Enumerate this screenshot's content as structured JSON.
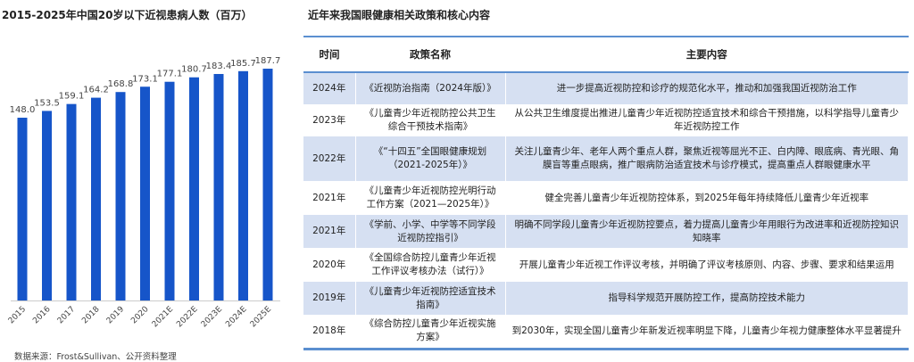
{
  "chart_data": {
    "type": "bar",
    "title": "2015-2025年中国20岁以下近视患病人数（百万）",
    "categories": [
      "2015",
      "2016",
      "2017",
      "2018",
      "2019",
      "2020",
      "2021E",
      "2022E",
      "2023E",
      "2024E",
      "2025E"
    ],
    "values": [
      148.0,
      153.5,
      159.1,
      164.2,
      168.8,
      173.1,
      177.1,
      180.7,
      183.4,
      185.7,
      187.7
    ],
    "ylim": [
      0,
      195
    ],
    "grid": false,
    "bar_color": "#1655c9",
    "source": "数据来源：Frost&Sullivan、公开资料整理"
  },
  "table": {
    "title": "近年来我国眼健康相关政策和核心内容",
    "headers": [
      "时间",
      "政策名称",
      "主要内容"
    ],
    "rows": [
      [
        "2024年",
        "《近视防治指南（2024年版）》",
        "进一步提高近视防控和诊疗的规范化水平，推动和加强我国近视防治工作"
      ],
      [
        "2023年",
        "《儿童青少年近视防控公共卫生综合干预技术指南》",
        "从公共卫生维度提出推进儿童青少年近视防控适宜技术和综合干预措施，以科学指导儿童青少年近视防控工作"
      ],
      [
        "2022年",
        "《“十四五”全国眼健康规划（2021-2025年）》",
        "关注儿童青少年、老年人两个重点人群，聚焦近视等屈光不正、白内障、眼底病、青光眼、角膜盲等重点眼病，推广眼病防治适宜技术与诊疗模式，提高重点人群眼健康水平"
      ],
      [
        "2021年",
        "《儿童青少年近视防控光明行动工作方案（2021—2025年）》",
        "健全完善儿童青少年近视防控体系，到2025年每年持续降低儿童青少年近视率"
      ],
      [
        "2021年",
        "《学前、小学、中学等不同学段近视防控指引》",
        "明确不同学段儿童青少年近视防控要点，着力提高儿童青少年用眼行为改进率和近视防控知识知晓率"
      ],
      [
        "2020年",
        "《全国综合防控儿童青少年近视工作评议考核办法（试行）》",
        "开展儿童青少年近视工作评议考核，并明确了评议考核原则、内容、步骤、要求和结果运用"
      ],
      [
        "2019年",
        "《儿童青少年近视防控适宜技术指南》",
        "指导科学规范开展防控工作，提高防控技术能力"
      ],
      [
        "2018年",
        "《综合防控儿童青少年近视实施方案》",
        "到2030年，实现全国儿童青少年新发近视率明显下降，儿童青少年视力健康整体水平显著提升"
      ]
    ],
    "shade_color": "#d6e0f2",
    "line_color": "#5b8fd0"
  }
}
